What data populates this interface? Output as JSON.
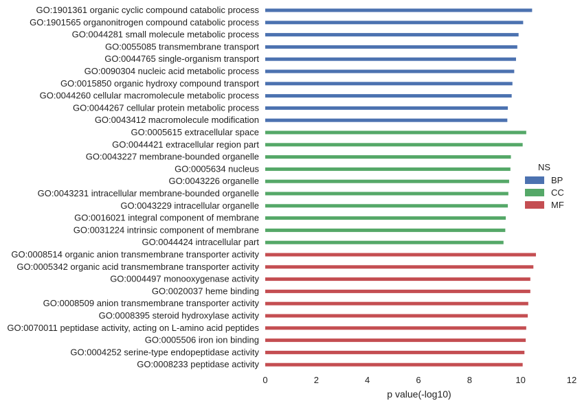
{
  "chart_data": {
    "type": "bar",
    "orientation": "horizontal",
    "title": "",
    "xlabel": "p value(-log10)",
    "ylabel": "",
    "xlim": [
      0,
      12
    ],
    "xticks": [
      0,
      2,
      4,
      6,
      8,
      10,
      12
    ],
    "grid": false,
    "legend": {
      "title": "NS",
      "placement": "right",
      "entries": [
        {
          "name": "BP",
          "color": "#4c72b0"
        },
        {
          "name": "CC",
          "color": "#55a868"
        },
        {
          "name": "MF",
          "color": "#c44e52"
        }
      ]
    },
    "categories": [
      "GO:1901361 organic cyclic compound catabolic process",
      "GO:1901565 organonitrogen compound catabolic process",
      "GO:0044281 small molecule metabolic process",
      "GO:0055085 transmembrane transport",
      "GO:0044765 single-organism transport",
      "GO:0090304 nucleic acid metabolic process",
      "GO:0015850 organic hydroxy compound transport",
      "GO:0044260 cellular macromolecule metabolic process",
      "GO:0044267 cellular protein metabolic process",
      "GO:0043412 macromolecule modification",
      "GO:0005615 extracellular space",
      "GO:0044421 extracellular region part",
      "GO:0043227 membrane-bounded organelle",
      "GO:0005634 nucleus",
      "GO:0043226 organelle",
      "GO:0043231 intracellular membrane-bounded organelle",
      "GO:0043229 intracellular organelle",
      "GO:0016021 integral component of membrane",
      "GO:0031224 intrinsic component of membrane",
      "GO:0044424 intracellular part",
      "GO:0008514 organic anion transmembrane transporter activity",
      "GO:0005342 organic acid transmembrane transporter activity",
      "GO:0004497 monooxygenase activity",
      "GO:0020037 heme binding",
      "GO:0008509 anion transmembrane transporter activity",
      "GO:0008395 steroid hydroxylase activity",
      "GO:0070011 peptidase activity, acting on L-amino acid peptides",
      "GO:0005506 iron ion binding",
      "GO:0004252 serine-type endopeptidase activity",
      "GO:0008233 peptidase activity"
    ],
    "groups": [
      "BP",
      "BP",
      "BP",
      "BP",
      "BP",
      "BP",
      "BP",
      "BP",
      "BP",
      "BP",
      "CC",
      "CC",
      "CC",
      "CC",
      "CC",
      "CC",
      "CC",
      "CC",
      "CC",
      "CC",
      "MF",
      "MF",
      "MF",
      "MF",
      "MF",
      "MF",
      "MF",
      "MF",
      "MF",
      "MF"
    ],
    "values": [
      10.45,
      10.1,
      9.92,
      9.87,
      9.82,
      9.75,
      9.68,
      9.65,
      9.5,
      9.48,
      10.22,
      10.08,
      9.62,
      9.6,
      9.55,
      9.52,
      9.5,
      9.42,
      9.4,
      9.33,
      10.6,
      10.5,
      10.38,
      10.38,
      10.3,
      10.28,
      10.22,
      10.2,
      10.15,
      10.08
    ]
  }
}
